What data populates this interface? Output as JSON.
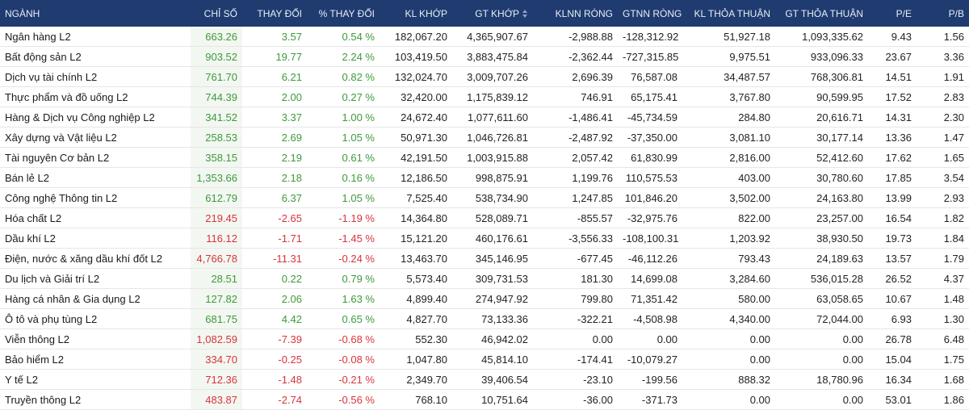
{
  "table": {
    "columns": [
      "NGÀNH",
      "CHỈ SỐ",
      "THAY ĐỔI",
      "% THAY ĐỔI",
      "KL KHỚP",
      "GT KHỚP",
      "KLNN RÒNG",
      "GTNN RÒNG",
      "KL THỎA THUẬN",
      "GT THỎA THUẬN",
      "P/E",
      "P/B"
    ],
    "rows": [
      [
        "Ngân hàng L2",
        "663.26",
        "3.57",
        "0.54 %",
        "182,067.20",
        "4,365,907.67",
        "-2,988.88",
        "-128,312.92",
        "51,927.18",
        "1,093,335.62",
        "9.43",
        "1.56"
      ],
      [
        "Bất động sản L2",
        "903.52",
        "19.77",
        "2.24 %",
        "103,419.50",
        "3,883,475.84",
        "-2,362.44",
        "-727,315.85",
        "9,975.51",
        "933,096.33",
        "23.67",
        "3.36"
      ],
      [
        "Dịch vụ tài chính L2",
        "761.70",
        "6.21",
        "0.82 %",
        "132,024.70",
        "3,009,707.26",
        "2,696.39",
        "76,587.08",
        "34,487.57",
        "768,306.81",
        "14.51",
        "1.91"
      ],
      [
        "Thực phẩm và đồ uống L2",
        "744.39",
        "2.00",
        "0.27 %",
        "32,420.00",
        "1,175,839.12",
        "746.91",
        "65,175.41",
        "3,767.80",
        "90,599.95",
        "17.52",
        "2.83"
      ],
      [
        "Hàng & Dịch vụ Công nghiệp L2",
        "341.52",
        "3.37",
        "1.00 %",
        "24,672.40",
        "1,077,611.60",
        "-1,486.41",
        "-45,734.59",
        "284.80",
        "20,616.71",
        "14.31",
        "2.30"
      ],
      [
        "Xây dựng và Vật liệu L2",
        "258.53",
        "2.69",
        "1.05 %",
        "50,971.30",
        "1,046,726.81",
        "-2,487.92",
        "-37,350.00",
        "3,081.10",
        "30,177.14",
        "13.36",
        "1.47"
      ],
      [
        "Tài nguyên Cơ bản L2",
        "358.15",
        "2.19",
        "0.61 %",
        "42,191.50",
        "1,003,915.88",
        "2,057.42",
        "61,830.99",
        "2,816.00",
        "52,412.60",
        "17.62",
        "1.65"
      ],
      [
        "Bán lẻ L2",
        "1,353.66",
        "2.18",
        "0.16 %",
        "12,186.50",
        "998,875.91",
        "1,199.76",
        "110,575.53",
        "403.00",
        "30,780.60",
        "17.85",
        "3.54"
      ],
      [
        "Công nghệ Thông tin L2",
        "612.79",
        "6.37",
        "1.05 %",
        "7,525.40",
        "538,734.90",
        "1,247.85",
        "101,846.20",
        "3,502.00",
        "24,163.80",
        "13.99",
        "2.93"
      ],
      [
        "Hóa chất L2",
        "219.45",
        "-2.65",
        "-1.19 %",
        "14,364.80",
        "528,089.71",
        "-855.57",
        "-32,975.76",
        "822.00",
        "23,257.00",
        "16.54",
        "1.82"
      ],
      [
        "Dầu khí L2",
        "116.12",
        "-1.71",
        "-1.45 %",
        "15,121.20",
        "460,176.61",
        "-3,556.33",
        "-108,100.31",
        "1,203.92",
        "38,930.50",
        "19.73",
        "1.84"
      ],
      [
        "Điện, nước & xăng dầu khí đốt L2",
        "4,766.78",
        "-11.31",
        "-0.24 %",
        "13,463.70",
        "345,146.95",
        "-677.45",
        "-46,112.26",
        "793.43",
        "24,189.63",
        "13.57",
        "1.79"
      ],
      [
        "Du lịch và Giải trí L2",
        "28.51",
        "0.22",
        "0.79 %",
        "5,573.40",
        "309,731.53",
        "181.30",
        "14,699.08",
        "3,284.60",
        "536,015.28",
        "26.52",
        "4.37"
      ],
      [
        "Hàng cá nhân & Gia dụng L2",
        "127.82",
        "2.06",
        "1.63 %",
        "4,899.40",
        "274,947.92",
        "799.80",
        "71,351.42",
        "580.00",
        "63,058.65",
        "10.67",
        "1.48"
      ],
      [
        "Ô tô và phụ tùng L2",
        "681.75",
        "4.42",
        "0.65 %",
        "4,827.70",
        "73,133.36",
        "-322.21",
        "-4,508.98",
        "4,340.00",
        "72,044.00",
        "6.93",
        "1.30"
      ],
      [
        "Viễn thông L2",
        "1,082.59",
        "-7.39",
        "-0.68 %",
        "552.30",
        "46,942.02",
        "0.00",
        "0.00",
        "0.00",
        "0.00",
        "26.78",
        "6.48"
      ],
      [
        "Bảo hiểm L2",
        "334.70",
        "-0.25",
        "-0.08 %",
        "1,047.80",
        "45,814.10",
        "-174.41",
        "-10,079.27",
        "0.00",
        "0.00",
        "15.04",
        "1.75"
      ],
      [
        "Y tế L2",
        "712.36",
        "-1.48",
        "-0.21 %",
        "2,349.70",
        "39,406.54",
        "-23.10",
        "-199.56",
        "888.32",
        "18,780.96",
        "16.34",
        "1.68"
      ],
      [
        "Truyền thông L2",
        "483.87",
        "-2.74",
        "-0.56 %",
        "768.10",
        "10,751.64",
        "-36.00",
        "-371.73",
        "0.00",
        "0.00",
        "53.01",
        "1.86"
      ]
    ]
  }
}
